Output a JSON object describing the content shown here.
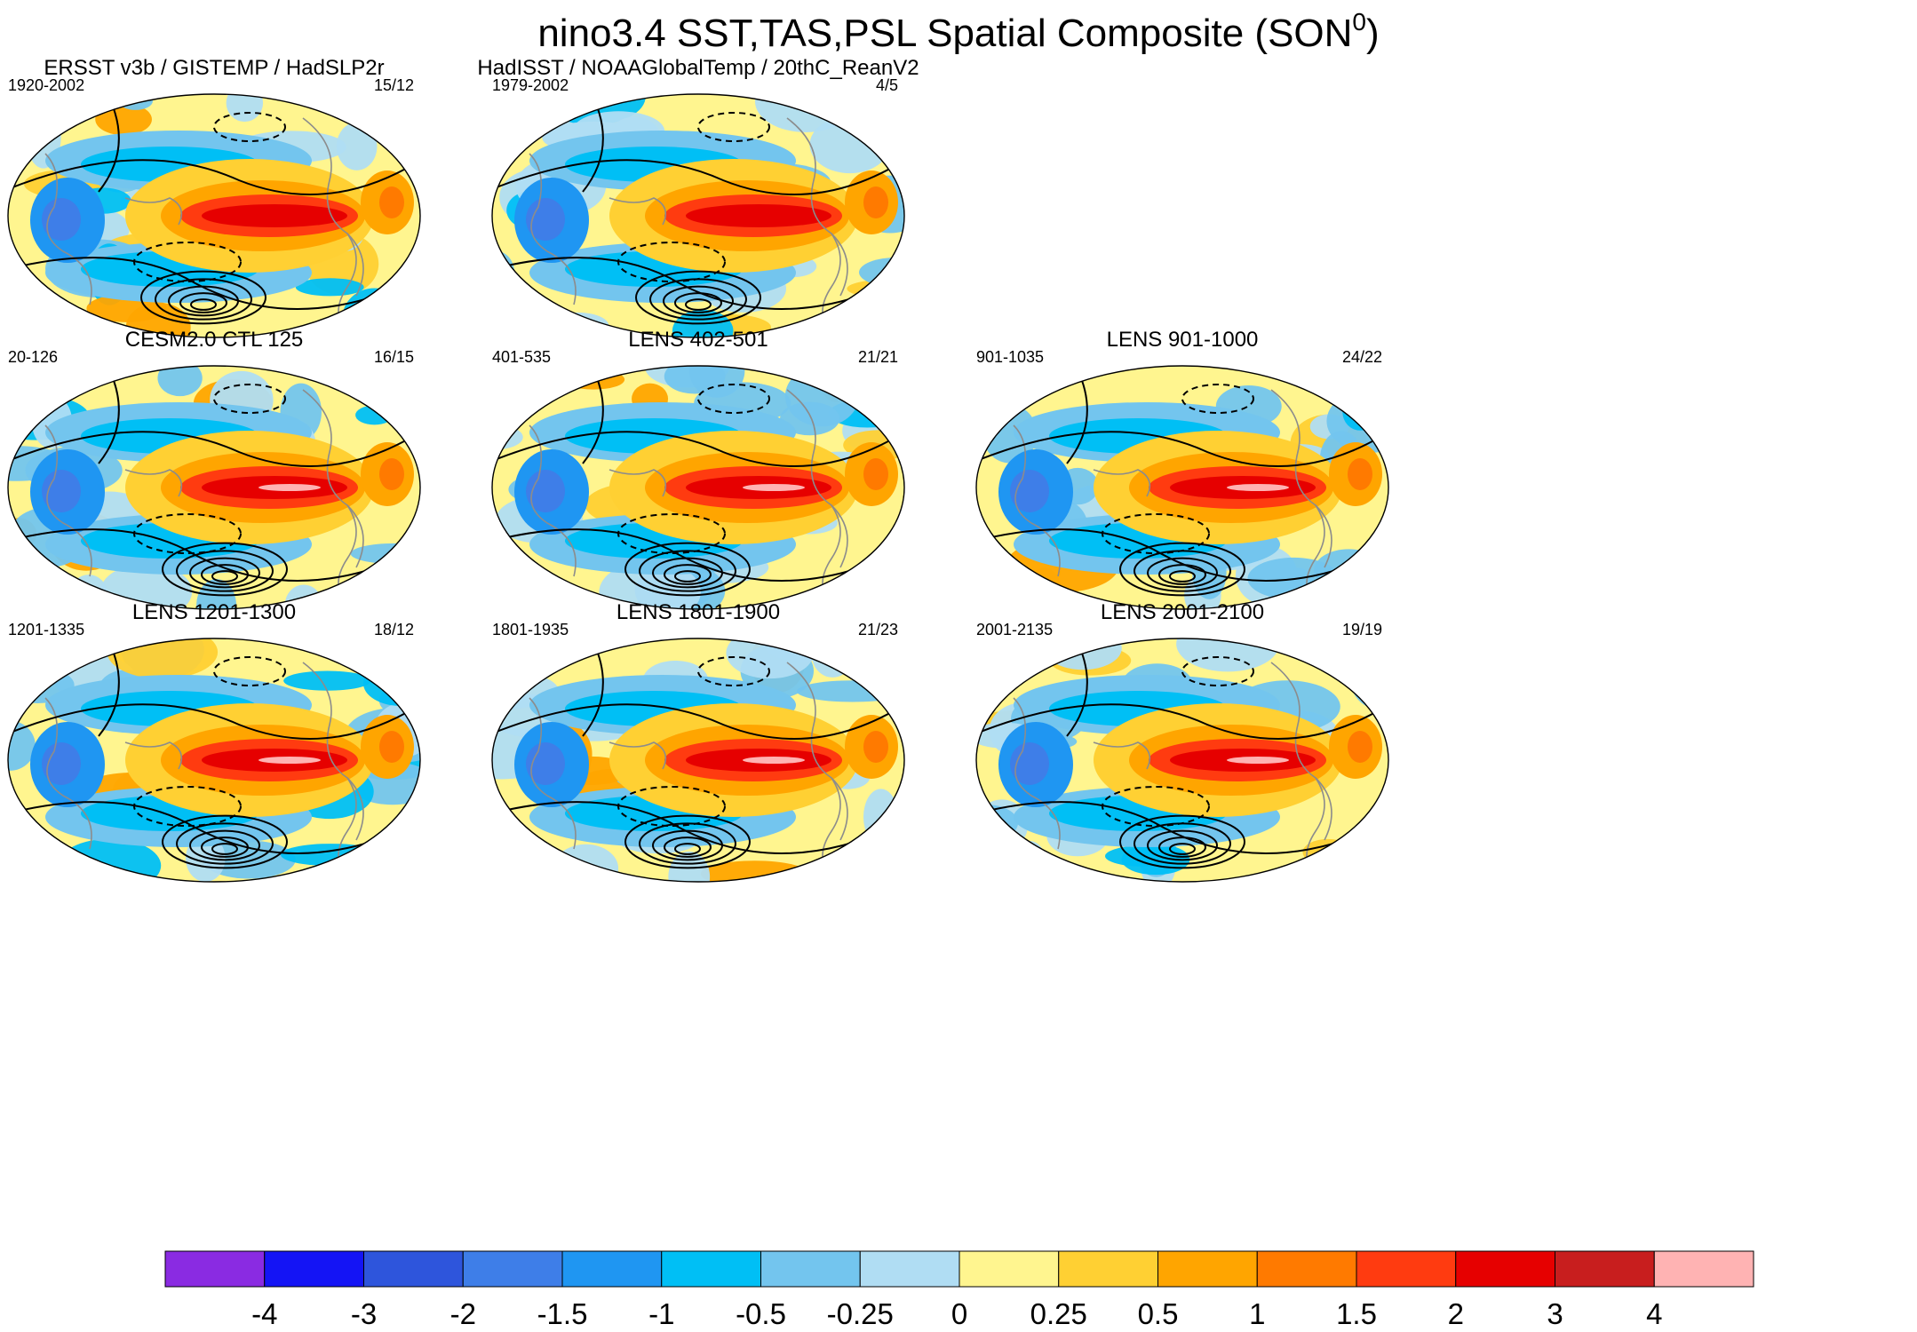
{
  "chart_data": {
    "type": "heatmap",
    "title": "nino3.4 SST,TAS,PSL Spatial Composite (SON",
    "title_superscript": "0",
    "title_suffix": ")",
    "panels": [
      {
        "title": "ERSST v3b / GISTEMP / HadSLP2r",
        "years": "1920-2002",
        "counts": "15/12",
        "row": 0,
        "col": 0,
        "variant": 0
      },
      {
        "title": "HadISST / NOAAGlobalTemp / 20thC_ReanV2",
        "years": "1979-2002",
        "counts": "4/5",
        "row": 0,
        "col": 1,
        "variant": 1
      },
      {
        "title": "CESM2.0 CTL 125",
        "years": "20-126",
        "counts": "16/15",
        "row": 1,
        "col": 0,
        "variant": 2
      },
      {
        "title": "LENS 402-501",
        "years": "401-535",
        "counts": "21/21",
        "row": 1,
        "col": 1,
        "variant": 3
      },
      {
        "title": "LENS 901-1000",
        "years": "901-1035",
        "counts": "24/22",
        "row": 1,
        "col": 2,
        "variant": 4
      },
      {
        "title": "LENS 1201-1300",
        "years": "1201-1335",
        "counts": "18/12",
        "row": 2,
        "col": 0,
        "variant": 5
      },
      {
        "title": "LENS 1801-1900",
        "years": "1801-1935",
        "counts": "21/23",
        "row": 2,
        "col": 1,
        "variant": 6
      },
      {
        "title": "LENS 2001-2100",
        "years": "2001-2135",
        "counts": "19/19",
        "row": 2,
        "col": 2,
        "variant": 7
      }
    ],
    "colorbar": {
      "labels": [
        "-4",
        "-3",
        "-2",
        "-1.5",
        "-1",
        "-0.5",
        "-0.25",
        "0",
        "0.25",
        "0.5",
        "1",
        "1.5",
        "2",
        "3",
        "4"
      ],
      "levels": [
        -4,
        -3,
        -2,
        -1.5,
        -1,
        -0.5,
        -0.25,
        0,
        0.25,
        0.5,
        1,
        1.5,
        2,
        3,
        4
      ],
      "colors": [
        "#8a2be2",
        "#1414f5",
        "#2e55dc",
        "#3e7ee8",
        "#1f96f2",
        "#00bff5",
        "#73c5ee",
        "#b0ddf3",
        "#fff58f",
        "#ffd033",
        "#ffa500",
        "#ff7a00",
        "#ff3b10",
        "#e60000",
        "#c81e1e",
        "#ffb3b3"
      ]
    }
  }
}
